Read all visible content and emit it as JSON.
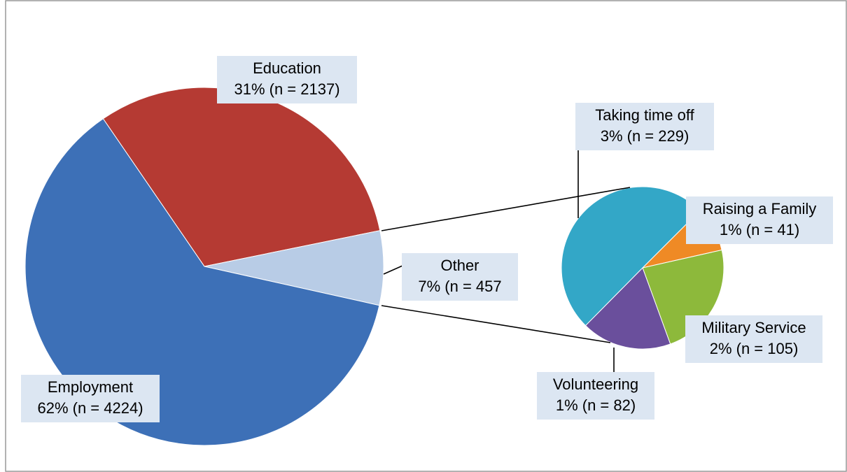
{
  "chart_data": [
    {
      "type": "pie",
      "categories": [
        "Education",
        "Other",
        "Employment"
      ],
      "values": [
        2137,
        457,
        4224
      ],
      "value_labels": [
        "31% (n = 2137)",
        "7% (n = 457",
        "62% (n = 4224)"
      ],
      "colors": [
        "#b53a33",
        "#b8cce6",
        "#3d70b7"
      ]
    },
    {
      "type": "pie",
      "categories": [
        "Raising a Family",
        "Military Service",
        "Volunteering",
        "Taking time off"
      ],
      "values": [
        41,
        105,
        82,
        229
      ],
      "value_labels": [
        "1% (n = 41)",
        "2% (n = 105)",
        "1% (n = 82)",
        "3% (n = 229)"
      ],
      "colors": [
        "#ef8a25",
        "#8db93b",
        "#6a4f9c",
        "#33a7c7"
      ]
    }
  ]
}
